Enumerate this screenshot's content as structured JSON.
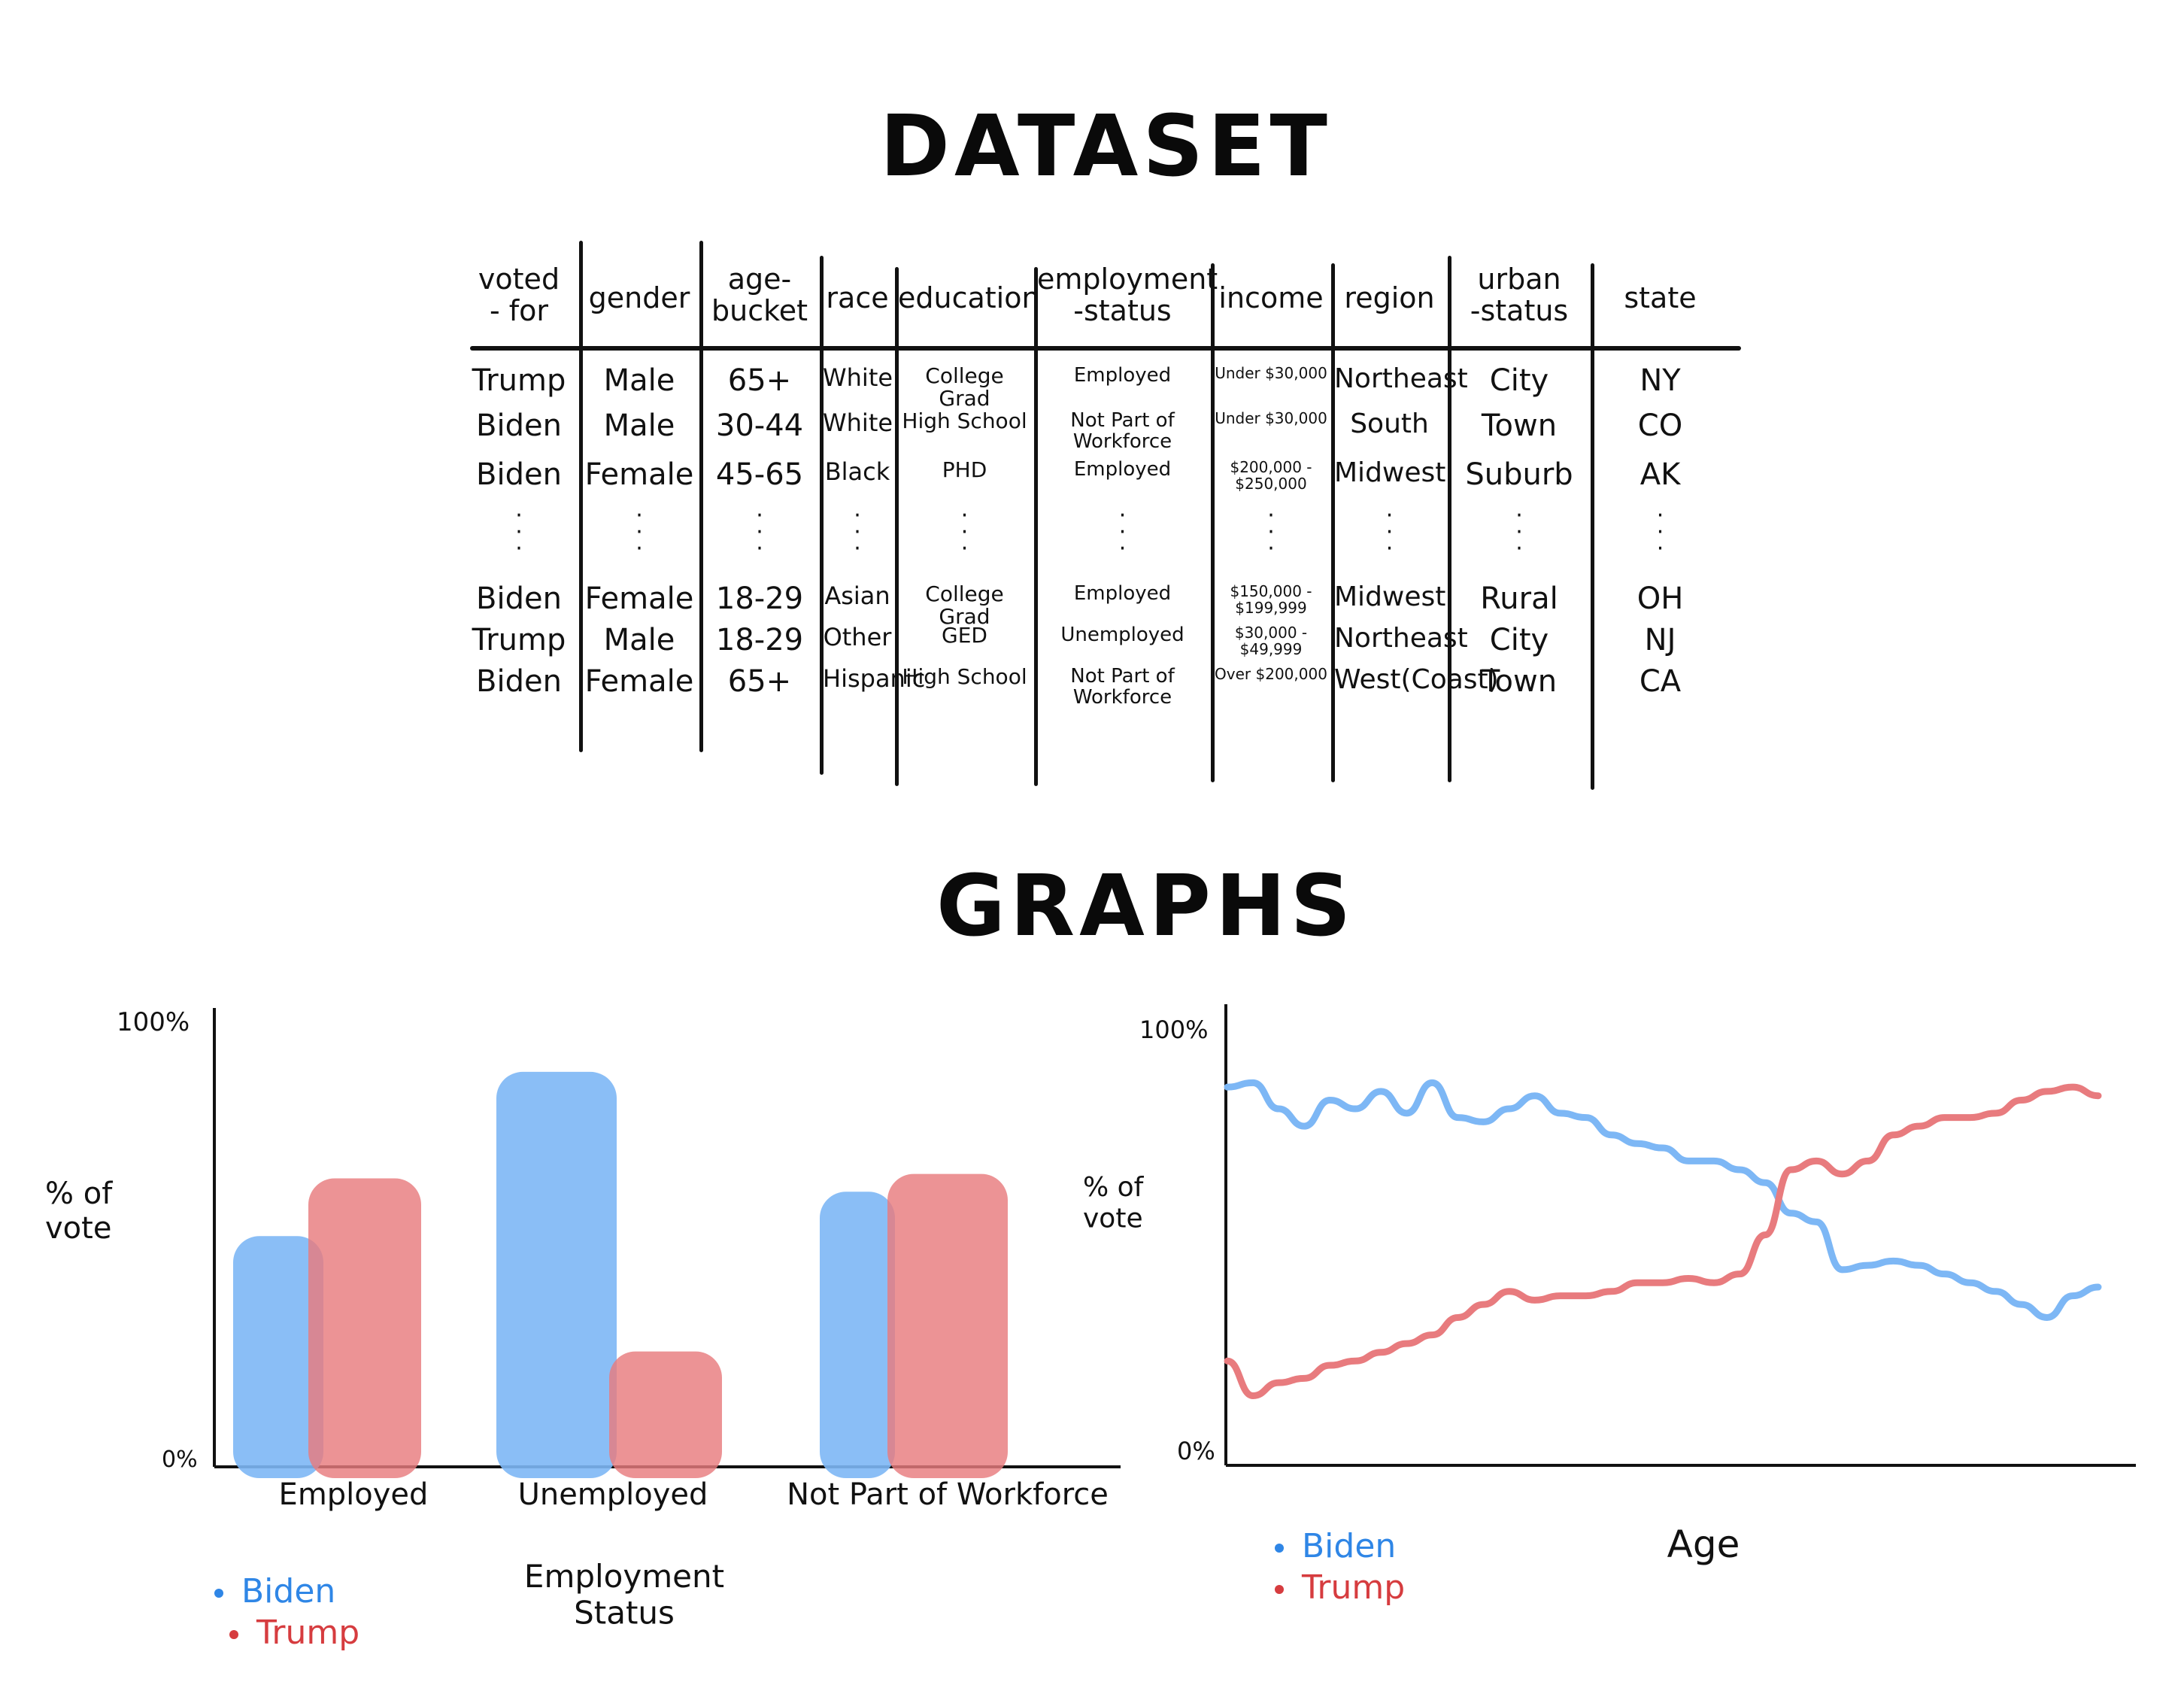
{
  "dataset_title": "DATASET",
  "graphs_title": "GRAPHS",
  "table": {
    "headers": [
      "voted\n- for",
      "gender",
      "age-\nbucket",
      "race",
      "education",
      "employment\n-status",
      "income",
      "region",
      "urban\n-status",
      "state"
    ],
    "rows_top": [
      [
        "Trump",
        "Male",
        "65+",
        "White",
        "College Grad",
        "Employed",
        "Under $30,000",
        "Northeast",
        "City",
        "NY"
      ],
      [
        "Biden",
        "Male",
        "30-44",
        "White",
        "High School",
        "Not Part of\nWorkforce",
        "Under $30,000",
        "South",
        "Town",
        "CO"
      ],
      [
        "Biden",
        "Female",
        "45-65",
        "Black",
        "PHD",
        "Employed",
        "$200,000 -\n$250,000",
        "Midwest",
        "Suburb",
        "AK"
      ]
    ],
    "rows_bottom": [
      [
        "Biden",
        "Female",
        "18-29",
        "Asian",
        "College Grad",
        "Employed",
        "$150,000 -\n$199,999",
        "Midwest",
        "Rural",
        "OH"
      ],
      [
        "Trump",
        "Male",
        "18-29",
        "Other",
        "GED",
        "Unemployed",
        "$30,000 -\n$49,999",
        "Northeast",
        "City",
        "NJ"
      ],
      [
        "Biden",
        "Female",
        "65+",
        "Hispanic",
        "High School",
        "Not Part of\nWorkforce",
        "Over $200,000",
        "West(Coast)",
        "Town",
        "CA"
      ]
    ]
  },
  "colors": {
    "biden": "#7db7f5",
    "trump": "#e87b7e",
    "biden_legend": "#2f86e6",
    "trump_legend": "#d63c3f"
  },
  "bar_chart": {
    "type": "bar",
    "y_top_label": "100%",
    "y_bottom_label": "0%",
    "ylabel": "% of\nvote",
    "xlabel": "Employment\nStatus",
    "categories": [
      "Employed",
      "Unemployed",
      "Not Part of Workforce"
    ],
    "ylim": [
      0,
      100
    ],
    "series": [
      {
        "name": "Biden",
        "values": [
          52,
          89,
          62
        ]
      },
      {
        "name": "Trump",
        "values": [
          65,
          26,
          66
        ]
      }
    ],
    "legend": [
      "Biden",
      "Trump"
    ]
  },
  "line_chart": {
    "type": "line",
    "y_top_label": "100%",
    "y_bottom_label": "0%",
    "ylabel": "% of\nvote",
    "xlabel": "Age",
    "ylim": [
      0,
      100
    ],
    "series": [
      {
        "name": "Biden",
        "values": [
          87,
          88,
          82,
          78,
          84,
          82,
          86,
          81,
          88,
          80,
          79,
          82,
          85,
          81,
          80,
          76,
          74,
          73,
          70,
          70,
          68,
          65,
          58,
          56,
          45,
          46,
          47,
          46,
          44,
          42,
          40,
          37,
          34,
          39,
          41
        ]
      },
      {
        "name": "Trump",
        "values": [
          24,
          16,
          19,
          20,
          23,
          24,
          26,
          28,
          30,
          34,
          37,
          40,
          38,
          39,
          39,
          40,
          42,
          42,
          43,
          42,
          44,
          53,
          68,
          70,
          67,
          70,
          76,
          78,
          80,
          80,
          81,
          84,
          86,
          87,
          85
        ]
      }
    ],
    "legend": [
      "Biden",
      "Trump"
    ]
  }
}
